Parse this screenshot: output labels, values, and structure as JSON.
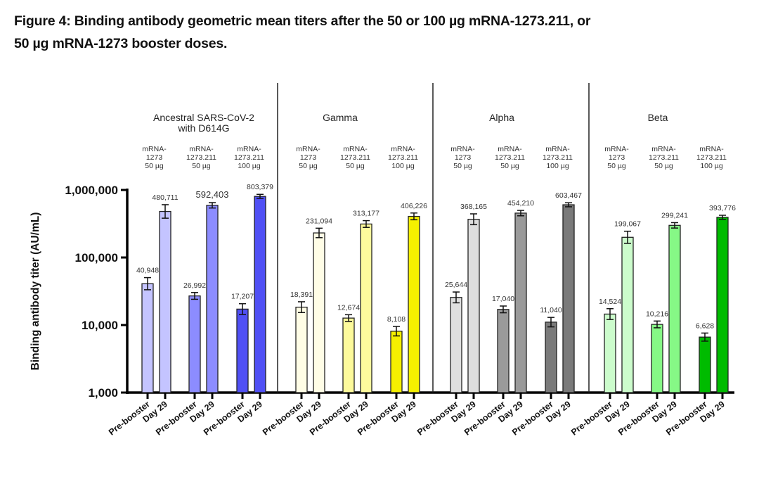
{
  "figure": {
    "title_line1": "Figure 4:  Binding antibody geometric mean titers after the 50 or 100 µg mRNA-1273.211, or",
    "title_line2": "50 µg mRNA-1273 booster doses."
  },
  "chart_data": {
    "type": "bar",
    "title": "Figure 4: Binding antibody geometric mean titers after the 50 or 100 µg mRNA-1273.211, or 50 µg mRNA-1273 booster doses.",
    "ylabel": "Binding antibody titer (AU/mL)",
    "xlabel": "",
    "yscale": "log",
    "ylim": [
      1000,
      1000000
    ],
    "yticks": [
      1000,
      10000,
      100000,
      1000000
    ],
    "ytick_labels": [
      "1,000",
      "10,000",
      "100,000",
      "1,000,000"
    ],
    "x_tick_labels": [
      "Pre-booster",
      "Day 29"
    ],
    "grid": false,
    "legend": "none",
    "panels": [
      {
        "name": "Ancestral SARS-CoV-2 with D614G",
        "title_lines": [
          "Ancestral SARS-CoV-2",
          "with D614G"
        ],
        "groups": [
          {
            "label": [
              "mRNA-",
              "1273",
              "50 µg"
            ],
            "color": "#c4c4ff",
            "values": [
              40948,
              480711
            ],
            "value_labels": [
              "40,948",
              "480,711"
            ],
            "err": [
              0.09,
              0.1
            ]
          },
          {
            "label": [
              "mRNA-",
              "1273.211",
              "50 µg"
            ],
            "color": "#8c8cff",
            "values": [
              26992,
              592403
            ],
            "value_labels": [
              "26,992",
              "592,403"
            ],
            "err": [
              0.05,
              0.04
            ]
          },
          {
            "label": [
              "mRNA-",
              "1273.211",
              "100 µg"
            ],
            "color": "#5050f5",
            "values": [
              17207,
              803379
            ],
            "value_labels": [
              "17,207",
              "803,379"
            ],
            "err": [
              0.08,
              0.03
            ]
          }
        ]
      },
      {
        "name": "Gamma",
        "title_lines": [
          "Gamma"
        ],
        "groups": [
          {
            "label": [
              "mRNA-",
              "1273",
              "50 µg"
            ],
            "color": "#fffde6",
            "values": [
              18391,
              231094
            ],
            "value_labels": [
              "18,391",
              "231,094"
            ],
            "err": [
              0.08,
              0.07
            ]
          },
          {
            "label": [
              "mRNA-",
              "1273.211",
              "50 µg"
            ],
            "color": "#fdfa9c",
            "values": [
              12674,
              313177
            ],
            "value_labels": [
              "12,674",
              "313,177"
            ],
            "err": [
              0.05,
              0.05
            ]
          },
          {
            "label": [
              "mRNA-",
              "1273.211",
              "100 µg"
            ],
            "color": "#f5f000",
            "values": [
              8108,
              406226
            ],
            "value_labels": [
              "8,108",
              "406,226"
            ],
            "err": [
              0.07,
              0.05
            ]
          }
        ]
      },
      {
        "name": "Alpha",
        "title_lines": [
          "Alpha"
        ],
        "groups": [
          {
            "label": [
              "mRNA-",
              "1273",
              "50 µg"
            ],
            "color": "#dedede",
            "values": [
              25644,
              368165
            ],
            "value_labels": [
              "25,644",
              "368,165"
            ],
            "err": [
              0.08,
              0.08
            ]
          },
          {
            "label": [
              "mRNA-",
              "1273.211",
              "50 µg"
            ],
            "color": "#9a9a9a",
            "values": [
              17040,
              454210
            ],
            "value_labels": [
              "17,040",
              "454,210"
            ],
            "err": [
              0.05,
              0.04
            ]
          },
          {
            "label": [
              "mRNA-",
              "1273.211",
              "100 µg"
            ],
            "color": "#7a7a7a",
            "values": [
              11040,
              603467
            ],
            "value_labels": [
              "11,040",
              "603,467"
            ],
            "err": [
              0.07,
              0.03
            ]
          }
        ]
      },
      {
        "name": "Beta",
        "title_lines": [
          "Beta"
        ],
        "groups": [
          {
            "label": [
              "mRNA-",
              "1273",
              "50 µg"
            ],
            "color": "#ccfccc",
            "values": [
              14524,
              199067
            ],
            "value_labels": [
              "14,524",
              "199,067"
            ],
            "err": [
              0.08,
              0.09
            ]
          },
          {
            "label": [
              "mRNA-",
              "1273.211",
              "50 µg"
            ],
            "color": "#86f886",
            "values": [
              10216,
              299241
            ],
            "value_labels": [
              "10,216",
              "299,241"
            ],
            "err": [
              0.05,
              0.04
            ]
          },
          {
            "label": [
              "mRNA-",
              "1273.211",
              "100 µg"
            ],
            "color": "#00bb00",
            "values": [
              6628,
              393776
            ],
            "value_labels": [
              "6,628",
              "393,776"
            ],
            "err": [
              0.06,
              0.03
            ]
          }
        ]
      }
    ]
  }
}
